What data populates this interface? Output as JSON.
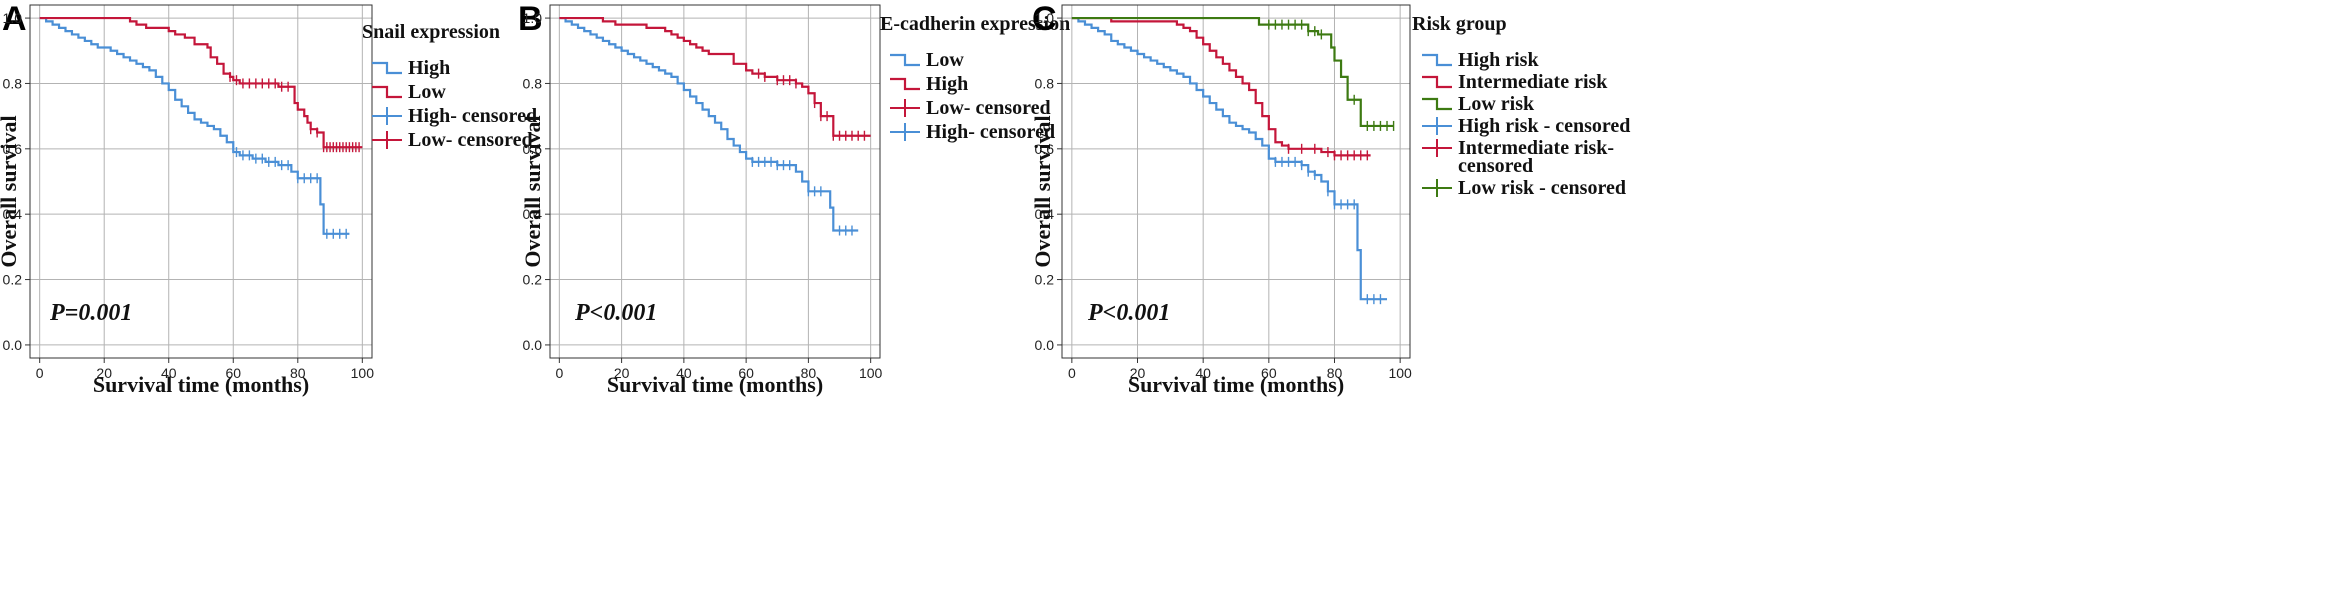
{
  "colors": {
    "blue": "#4a8fd6",
    "red": "#c4163a",
    "green": "#3d7a12",
    "grid": "#b3b3b3",
    "axis": "#333333"
  },
  "chart_data": [
    {
      "type": "line",
      "panel_letter": "A",
      "title": "",
      "xlabel": "Survival time (months)",
      "ylabel": "Overall survival",
      "xlim": [
        -3,
        103
      ],
      "ylim": [
        -0.04,
        1.04
      ],
      "xticks": [
        0,
        20,
        40,
        60,
        80,
        100
      ],
      "yticks": [
        0.0,
        0.2,
        0.4,
        0.6,
        0.8,
        1.0
      ],
      "ytick_labels": [
        "0.0",
        "0.2",
        "0.4",
        "0.6",
        "0.8",
        "1.0"
      ],
      "grid": true,
      "legend_title": "Snail expression",
      "legend_position": "right",
      "legend": [
        {
          "label": "High",
          "color": "blue",
          "kind": "step"
        },
        {
          "label": "Low",
          "color": "red",
          "kind": "step"
        },
        {
          "label": "High- censored",
          "color": "blue",
          "kind": "censor"
        },
        {
          "label": "Low- censored",
          "color": "red",
          "kind": "censor"
        }
      ],
      "p_value": "P=0.001",
      "series": [
        {
          "name": "High",
          "color": "blue",
          "x": [
            0,
            2,
            4,
            6,
            8,
            10,
            12,
            14,
            16,
            18,
            20,
            22,
            24,
            26,
            28,
            30,
            32,
            34,
            36,
            38,
            40,
            42,
            44,
            46,
            48,
            50,
            52,
            54,
            56,
            58,
            60,
            62,
            64,
            66,
            68,
            70,
            72,
            74,
            76,
            78,
            80,
            82,
            84,
            86,
            87,
            88,
            90,
            92,
            96
          ],
          "y": [
            1.0,
            0.99,
            0.98,
            0.97,
            0.96,
            0.95,
            0.94,
            0.93,
            0.92,
            0.91,
            0.91,
            0.9,
            0.89,
            0.88,
            0.87,
            0.86,
            0.85,
            0.84,
            0.82,
            0.8,
            0.78,
            0.75,
            0.73,
            0.71,
            0.69,
            0.68,
            0.67,
            0.66,
            0.64,
            0.62,
            0.59,
            0.58,
            0.58,
            0.57,
            0.57,
            0.56,
            0.56,
            0.55,
            0.55,
            0.53,
            0.51,
            0.51,
            0.51,
            0.51,
            0.43,
            0.34,
            0.34,
            0.34,
            0.34
          ],
          "censored_x": [
            61,
            63,
            65,
            67,
            69,
            71,
            73,
            75,
            77,
            80,
            82,
            84,
            86,
            89,
            91,
            93,
            95
          ]
        },
        {
          "name": "Low",
          "color": "red",
          "x": [
            0,
            28,
            30,
            33,
            36,
            40,
            42,
            45,
            48,
            50,
            52,
            53,
            55,
            57,
            59,
            60,
            62,
            74,
            78,
            79,
            80,
            82,
            83,
            84,
            86,
            88,
            100
          ],
          "y": [
            1.0,
            0.99,
            0.98,
            0.97,
            0.97,
            0.96,
            0.95,
            0.94,
            0.92,
            0.92,
            0.91,
            0.88,
            0.86,
            0.83,
            0.82,
            0.81,
            0.8,
            0.79,
            0.79,
            0.74,
            0.72,
            0.7,
            0.68,
            0.66,
            0.65,
            0.605,
            0.605
          ],
          "censored_x": [
            59,
            61,
            63,
            65,
            67,
            69,
            71,
            73,
            75,
            77,
            84,
            86,
            88,
            89,
            90,
            91,
            92,
            93,
            94,
            95,
            96,
            97,
            98,
            99
          ]
        }
      ]
    },
    {
      "type": "line",
      "panel_letter": "B",
      "title": "",
      "xlabel": "Survival time (months)",
      "ylabel": "Overall survival",
      "xlim": [
        -3,
        103
      ],
      "ylim": [
        -0.04,
        1.04
      ],
      "xticks": [
        0,
        20,
        40,
        60,
        80,
        100
      ],
      "yticks": [
        0.0,
        0.2,
        0.4,
        0.6,
        0.8,
        1.0
      ],
      "ytick_labels": [
        "0.0",
        "0.2",
        "0.4",
        "0.6",
        "0.8",
        "1.0"
      ],
      "grid": true,
      "legend_title": "E-cadherin expression",
      "legend_position": "right",
      "legend": [
        {
          "label": "Low",
          "color": "blue",
          "kind": "step"
        },
        {
          "label": "High",
          "color": "red",
          "kind": "step"
        },
        {
          "label": "Low- censored",
          "color": "red",
          "kind": "censor"
        },
        {
          "label": "High- censored",
          "color": "blue",
          "kind": "censor"
        }
      ],
      "p_value": "P<0.001",
      "series": [
        {
          "name": "Low",
          "color": "blue",
          "x": [
            0,
            2,
            4,
            6,
            8,
            10,
            12,
            14,
            16,
            18,
            20,
            22,
            24,
            26,
            28,
            30,
            32,
            34,
            36,
            38,
            40,
            42,
            44,
            46,
            48,
            50,
            52,
            54,
            56,
            58,
            60,
            62,
            66,
            70,
            74,
            76,
            78,
            80,
            84,
            86,
            87,
            88,
            96
          ],
          "y": [
            1.0,
            0.99,
            0.98,
            0.97,
            0.96,
            0.95,
            0.94,
            0.93,
            0.92,
            0.91,
            0.9,
            0.89,
            0.88,
            0.87,
            0.86,
            0.85,
            0.84,
            0.83,
            0.82,
            0.8,
            0.78,
            0.76,
            0.74,
            0.72,
            0.7,
            0.68,
            0.66,
            0.63,
            0.61,
            0.59,
            0.57,
            0.56,
            0.56,
            0.55,
            0.55,
            0.53,
            0.5,
            0.47,
            0.47,
            0.47,
            0.42,
            0.35,
            0.35
          ],
          "censored_x": [
            62,
            64,
            66,
            68,
            70,
            72,
            74,
            80,
            82,
            84,
            90,
            92,
            94
          ]
        },
        {
          "name": "High",
          "color": "red",
          "x": [
            0,
            14,
            16,
            18,
            20,
            24,
            28,
            34,
            36,
            38,
            40,
            42,
            44,
            46,
            48,
            52,
            56,
            60,
            62,
            66,
            68,
            70,
            72,
            76,
            78,
            80,
            82,
            84,
            86,
            88,
            100
          ],
          "y": [
            1.0,
            0.99,
            0.99,
            0.98,
            0.98,
            0.98,
            0.97,
            0.96,
            0.95,
            0.94,
            0.93,
            0.92,
            0.91,
            0.9,
            0.89,
            0.89,
            0.86,
            0.84,
            0.83,
            0.82,
            0.82,
            0.81,
            0.81,
            0.8,
            0.79,
            0.77,
            0.74,
            0.7,
            0.7,
            0.64,
            0.64
          ],
          "censored_x": [
            64,
            66,
            70,
            72,
            74,
            76,
            82,
            84,
            86,
            88,
            90,
            92,
            94,
            96,
            98
          ]
        }
      ]
    },
    {
      "type": "line",
      "panel_letter": "C",
      "title": "",
      "xlabel": "Survival time (months)",
      "ylabel": "Overall survival",
      "xlim": [
        -3,
        103
      ],
      "ylim": [
        -0.04,
        1.04
      ],
      "xticks": [
        0,
        20,
        40,
        60,
        80,
        100
      ],
      "yticks": [
        0.0,
        0.2,
        0.4,
        0.6,
        0.8,
        1.0
      ],
      "ytick_labels": [
        "0.0",
        "0.2",
        "0.4",
        "0.6",
        "0.8",
        "1.0"
      ],
      "grid": true,
      "legend_title": "Risk group",
      "legend_position": "right",
      "legend": [
        {
          "label": "High risk",
          "color": "blue",
          "kind": "step"
        },
        {
          "label": "Intermediate risk",
          "color": "red",
          "kind": "step"
        },
        {
          "label": "Low risk",
          "color": "green",
          "kind": "step"
        },
        {
          "label": "High risk - censored",
          "color": "blue",
          "kind": "censor"
        },
        {
          "label": "Intermediate risk- censored",
          "color": "red",
          "kind": "censor",
          "lines": [
            "Intermediate risk-",
            "censored"
          ]
        },
        {
          "label": "Low risk - censored",
          "color": "green",
          "kind": "censor"
        }
      ],
      "p_value": "P<0.001",
      "series": [
        {
          "name": "High risk",
          "color": "blue",
          "x": [
            0,
            2,
            4,
            6,
            8,
            10,
            12,
            14,
            16,
            18,
            20,
            22,
            24,
            26,
            28,
            30,
            32,
            34,
            36,
            38,
            40,
            42,
            44,
            46,
            48,
            50,
            52,
            54,
            56,
            58,
            60,
            62,
            66,
            70,
            72,
            74,
            76,
            78,
            80,
            84,
            86,
            87,
            88,
            96
          ],
          "y": [
            1.0,
            0.99,
            0.98,
            0.97,
            0.96,
            0.95,
            0.93,
            0.92,
            0.91,
            0.9,
            0.89,
            0.88,
            0.87,
            0.86,
            0.85,
            0.84,
            0.83,
            0.82,
            0.8,
            0.78,
            0.76,
            0.74,
            0.72,
            0.7,
            0.68,
            0.67,
            0.66,
            0.65,
            0.63,
            0.61,
            0.57,
            0.56,
            0.56,
            0.55,
            0.53,
            0.52,
            0.5,
            0.47,
            0.43,
            0.43,
            0.43,
            0.29,
            0.14,
            0.14
          ],
          "censored_x": [
            62,
            64,
            66,
            68,
            70,
            72,
            74,
            78,
            80,
            82,
            84,
            86,
            90,
            92,
            94
          ]
        },
        {
          "name": "Intermediate risk",
          "color": "red",
          "x": [
            0,
            12,
            28,
            32,
            34,
            36,
            38,
            40,
            42,
            44,
            46,
            48,
            50,
            52,
            54,
            56,
            58,
            60,
            62,
            64,
            66,
            70,
            74,
            76,
            80,
            91
          ],
          "y": [
            1.0,
            0.99,
            0.99,
            0.98,
            0.97,
            0.96,
            0.94,
            0.92,
            0.9,
            0.88,
            0.86,
            0.84,
            0.82,
            0.8,
            0.78,
            0.74,
            0.7,
            0.66,
            0.62,
            0.61,
            0.6,
            0.6,
            0.6,
            0.59,
            0.58,
            0.58
          ],
          "censored_x": [
            66,
            70,
            74,
            78,
            80,
            82,
            84,
            86,
            88,
            90
          ]
        },
        {
          "name": "Low risk",
          "color": "green",
          "x": [
            0,
            57,
            72,
            75,
            77,
            79,
            80,
            82,
            84,
            86,
            88,
            98
          ],
          "y": [
            1.0,
            0.98,
            0.96,
            0.95,
            0.95,
            0.91,
            0.87,
            0.82,
            0.75,
            0.75,
            0.67,
            0.67
          ],
          "censored_x": [
            60,
            62,
            64,
            66,
            68,
            70,
            72,
            74,
            76,
            86,
            90,
            92,
            94,
            96,
            98
          ]
        }
      ]
    }
  ]
}
